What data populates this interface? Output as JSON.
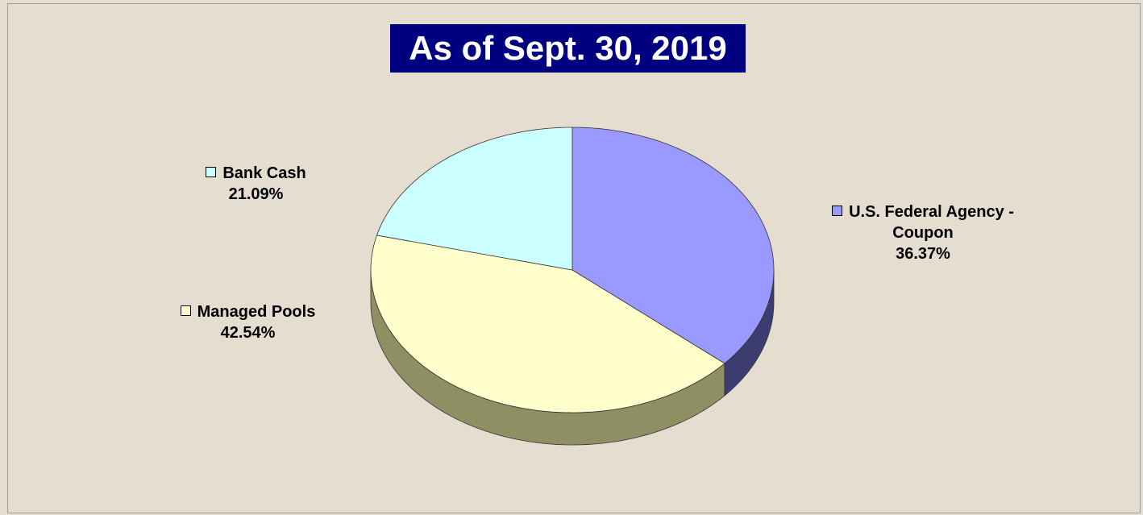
{
  "chart_data": {
    "type": "pie",
    "title": "As of Sept. 30, 2019",
    "categories": [
      "U.S. Federal Agency - Coupon",
      "Managed Pools",
      "Bank Cash"
    ],
    "values": [
      36.37,
      42.54,
      21.09
    ],
    "value_labels": [
      "36.37%",
      "42.54%",
      "21.09%"
    ],
    "colors": [
      "#9999ff",
      "#ffffcc",
      "#ccffff"
    ],
    "side_colors": [
      "#3c3c70",
      "#8f8f64",
      "#6f8f8f"
    ]
  }
}
